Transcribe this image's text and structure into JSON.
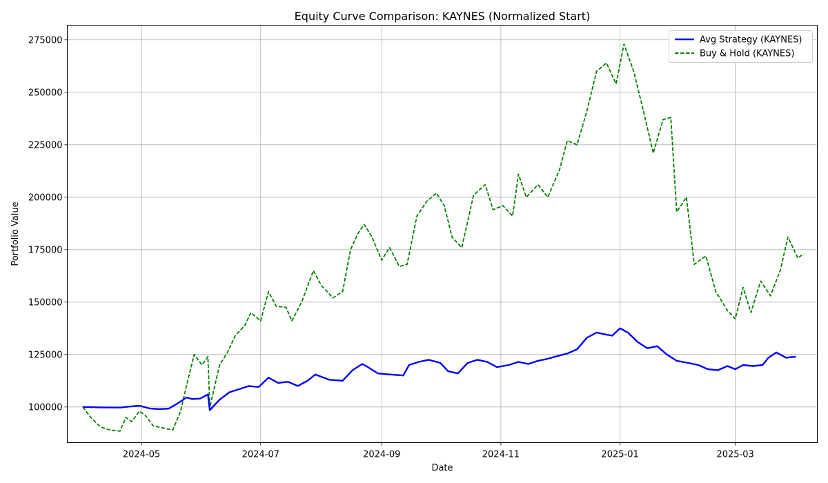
{
  "chart_data": {
    "type": "line",
    "title": "Equity Curve Comparison: KAYNES (Normalized Start)",
    "xlabel": "Date",
    "ylabel": "Portfolio Value",
    "x_range": [
      "2024-03-24",
      "2025-04-12"
    ],
    "ylim": [
      83000,
      282000
    ],
    "x_ticks": [
      {
        "date": "2024-05-01",
        "label": "2024-05"
      },
      {
        "date": "2024-07-01",
        "label": "2024-07"
      },
      {
        "date": "2024-09-01",
        "label": "2024-09"
      },
      {
        "date": "2024-11-01",
        "label": "2024-11"
      },
      {
        "date": "2025-01-01",
        "label": "2025-01"
      },
      {
        "date": "2025-03-01",
        "label": "2025-03"
      }
    ],
    "y_ticks": [
      100000,
      125000,
      150000,
      175000,
      200000,
      225000,
      250000,
      275000
    ],
    "grid": true,
    "legend_position": "top-right",
    "series": [
      {
        "name": "Avg Strategy (KAYNES)",
        "color": "#0000ff",
        "style": "solid",
        "points": [
          [
            "2024-04-01",
            100000
          ],
          [
            "2024-04-10",
            99800
          ],
          [
            "2024-04-20",
            99700
          ],
          [
            "2024-04-25",
            100200
          ],
          [
            "2024-04-30",
            100600
          ],
          [
            "2024-05-05",
            99300
          ],
          [
            "2024-05-10",
            99000
          ],
          [
            "2024-05-15",
            99200
          ],
          [
            "2024-05-20",
            102000
          ],
          [
            "2024-05-24",
            104500
          ],
          [
            "2024-05-27",
            103800
          ],
          [
            "2024-05-31",
            104000
          ],
          [
            "2024-06-04",
            106000
          ],
          [
            "2024-06-05",
            98500
          ],
          [
            "2024-06-10",
            103500
          ],
          [
            "2024-06-15",
            107000
          ],
          [
            "2024-06-20",
            108500
          ],
          [
            "2024-06-25",
            110000
          ],
          [
            "2024-06-30",
            109500
          ],
          [
            "2024-07-05",
            114000
          ],
          [
            "2024-07-10",
            111500
          ],
          [
            "2024-07-15",
            112000
          ],
          [
            "2024-07-20",
            110000
          ],
          [
            "2024-07-25",
            112500
          ],
          [
            "2024-07-29",
            115500
          ],
          [
            "2024-08-05",
            113000
          ],
          [
            "2024-08-12",
            112500
          ],
          [
            "2024-08-17",
            117500
          ],
          [
            "2024-08-22",
            120500
          ],
          [
            "2024-08-25",
            119000
          ],
          [
            "2024-08-30",
            116000
          ],
          [
            "2024-09-05",
            115500
          ],
          [
            "2024-09-12",
            115000
          ],
          [
            "2024-09-15",
            120000
          ],
          [
            "2024-09-20",
            121500
          ],
          [
            "2024-09-25",
            122500
          ],
          [
            "2024-10-01",
            121000
          ],
          [
            "2024-10-05",
            117000
          ],
          [
            "2024-10-10",
            116000
          ],
          [
            "2024-10-15",
            121000
          ],
          [
            "2024-10-20",
            122500
          ],
          [
            "2024-10-25",
            121500
          ],
          [
            "2024-10-30",
            119000
          ],
          [
            "2024-11-05",
            120000
          ],
          [
            "2024-11-10",
            121500
          ],
          [
            "2024-11-15",
            120500
          ],
          [
            "2024-11-20",
            122000
          ],
          [
            "2024-11-25",
            123000
          ],
          [
            "2024-12-01",
            124500
          ],
          [
            "2024-12-05",
            125500
          ],
          [
            "2024-12-10",
            127500
          ],
          [
            "2024-12-15",
            133000
          ],
          [
            "2024-12-20",
            135500
          ],
          [
            "2024-12-25",
            134500
          ],
          [
            "2024-12-28",
            134000
          ],
          [
            "2025-01-01",
            137500
          ],
          [
            "2025-01-05",
            135500
          ],
          [
            "2025-01-10",
            131000
          ],
          [
            "2025-01-15",
            128000
          ],
          [
            "2025-01-20",
            129000
          ],
          [
            "2025-01-25",
            125000
          ],
          [
            "2025-01-30",
            122000
          ],
          [
            "2025-02-05",
            121000
          ],
          [
            "2025-02-10",
            120000
          ],
          [
            "2025-02-15",
            118000
          ],
          [
            "2025-02-20",
            117500
          ],
          [
            "2025-02-25",
            119500
          ],
          [
            "2025-03-01",
            118000
          ],
          [
            "2025-03-05",
            120000
          ],
          [
            "2025-03-10",
            119500
          ],
          [
            "2025-03-15",
            120000
          ],
          [
            "2025-03-18",
            123500
          ],
          [
            "2025-03-22",
            126000
          ],
          [
            "2025-03-27",
            123500
          ],
          [
            "2025-04-01",
            124000
          ]
        ]
      },
      {
        "name": "Buy & Hold (KAYNES)",
        "color": "#008000",
        "style": "dashed",
        "points": [
          [
            "2024-04-01",
            100000
          ],
          [
            "2024-04-05",
            95000
          ],
          [
            "2024-04-10",
            90500
          ],
          [
            "2024-04-15",
            89000
          ],
          [
            "2024-04-20",
            88500
          ],
          [
            "2024-04-23",
            95000
          ],
          [
            "2024-04-26",
            93000
          ],
          [
            "2024-04-30",
            98000
          ],
          [
            "2024-05-03",
            96000
          ],
          [
            "2024-05-07",
            91000
          ],
          [
            "2024-05-12",
            90000
          ],
          [
            "2024-05-17",
            89000
          ],
          [
            "2024-05-21",
            98000
          ],
          [
            "2024-05-24",
            110000
          ],
          [
            "2024-05-28",
            125000
          ],
          [
            "2024-06-01",
            120000
          ],
          [
            "2024-06-04",
            124000
          ],
          [
            "2024-06-05",
            100000
          ],
          [
            "2024-06-10",
            120000
          ],
          [
            "2024-06-14",
            126000
          ],
          [
            "2024-06-18",
            134000
          ],
          [
            "2024-06-23",
            139000
          ],
          [
            "2024-06-26",
            145000
          ],
          [
            "2024-07-01",
            141000
          ],
          [
            "2024-07-05",
            155000
          ],
          [
            "2024-07-09",
            148000
          ],
          [
            "2024-07-14",
            147500
          ],
          [
            "2024-07-17",
            141000
          ],
          [
            "2024-07-22",
            150000
          ],
          [
            "2024-07-28",
            165000
          ],
          [
            "2024-08-01",
            158000
          ],
          [
            "2024-08-07",
            152000
          ],
          [
            "2024-08-12",
            155000
          ],
          [
            "2024-08-16",
            175000
          ],
          [
            "2024-08-20",
            183000
          ],
          [
            "2024-08-23",
            187000
          ],
          [
            "2024-08-27",
            181000
          ],
          [
            "2024-09-01",
            170000
          ],
          [
            "2024-09-05",
            176000
          ],
          [
            "2024-09-10",
            167000
          ],
          [
            "2024-09-14",
            168000
          ],
          [
            "2024-09-19",
            191000
          ],
          [
            "2024-09-24",
            198000
          ],
          [
            "2024-09-29",
            202000
          ],
          [
            "2024-10-03",
            196000
          ],
          [
            "2024-10-07",
            181000
          ],
          [
            "2024-10-12",
            176000
          ],
          [
            "2024-10-18",
            201000
          ],
          [
            "2024-10-24",
            206000
          ],
          [
            "2024-10-28",
            194000
          ],
          [
            "2024-11-02",
            196000
          ],
          [
            "2024-11-07",
            191000
          ],
          [
            "2024-11-10",
            211000
          ],
          [
            "2024-11-14",
            200000
          ],
          [
            "2024-11-20",
            206000
          ],
          [
            "2024-11-25",
            200000
          ],
          [
            "2024-12-01",
            213000
          ],
          [
            "2024-12-05",
            227000
          ],
          [
            "2024-12-10",
            225000
          ],
          [
            "2024-12-15",
            241000
          ],
          [
            "2024-12-20",
            260000
          ],
          [
            "2024-12-25",
            264000
          ],
          [
            "2024-12-30",
            254000
          ],
          [
            "2025-01-03",
            273000
          ],
          [
            "2025-01-08",
            260000
          ],
          [
            "2025-01-13",
            241000
          ],
          [
            "2025-01-18",
            221000
          ],
          [
            "2025-01-23",
            237000
          ],
          [
            "2025-01-27",
            238000
          ],
          [
            "2025-01-30",
            193000
          ],
          [
            "2025-02-04",
            200000
          ],
          [
            "2025-02-08",
            168000
          ],
          [
            "2025-02-14",
            172000
          ],
          [
            "2025-02-19",
            155000
          ],
          [
            "2025-02-25",
            146000
          ],
          [
            "2025-03-01",
            142000
          ],
          [
            "2025-03-05",
            157000
          ],
          [
            "2025-03-09",
            145000
          ],
          [
            "2025-03-14",
            160000
          ],
          [
            "2025-03-19",
            153000
          ],
          [
            "2025-03-24",
            165000
          ],
          [
            "2025-03-28",
            181000
          ],
          [
            "2025-04-02",
            171000
          ],
          [
            "2025-04-05",
            173000
          ]
        ]
      }
    ]
  }
}
